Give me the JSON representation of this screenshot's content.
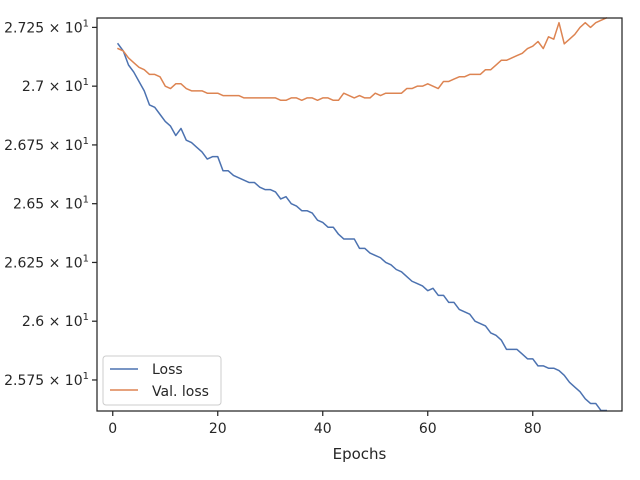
{
  "chart_data": {
    "type": "line",
    "title": "",
    "xlabel": "Epochs",
    "ylabel": "",
    "xlim": [
      -3,
      97
    ],
    "ylim": [
      25.618,
      27.29
    ],
    "x_ticks": [
      0,
      20,
      40,
      60,
      80
    ],
    "y_ticks": [
      {
        "value": 25.75,
        "mantissa": "2.575",
        "exp": "1"
      },
      {
        "value": 26.0,
        "mantissa": "2.6",
        "exp": "1"
      },
      {
        "value": 26.25,
        "mantissa": "2.625",
        "exp": "1"
      },
      {
        "value": 26.5,
        "mantissa": "2.65",
        "exp": "1"
      },
      {
        "value": 26.75,
        "mantissa": "2.675",
        "exp": "1"
      },
      {
        "value": 27.0,
        "mantissa": "2.7",
        "exp": "1"
      },
      {
        "value": 27.25,
        "mantissa": "2.725",
        "exp": "1"
      }
    ],
    "y_tick_times": "×",
    "grid": false,
    "legend_position": "lower-left",
    "series": [
      {
        "name": "Loss",
        "color": "#4c72b0",
        "x": [
          1,
          2,
          3,
          4,
          5,
          6,
          7,
          8,
          9,
          10,
          11,
          12,
          13,
          14,
          15,
          16,
          17,
          18,
          19,
          20,
          21,
          22,
          23,
          24,
          25,
          26,
          27,
          28,
          29,
          30,
          31,
          32,
          33,
          34,
          35,
          36,
          37,
          38,
          39,
          40,
          41,
          42,
          43,
          44,
          45,
          46,
          47,
          48,
          49,
          50,
          51,
          52,
          53,
          54,
          55,
          56,
          57,
          58,
          59,
          60,
          61,
          62,
          63,
          64,
          65,
          66,
          67,
          68,
          69,
          70,
          71,
          72,
          73,
          74,
          75,
          76,
          77,
          78,
          79,
          80,
          81,
          82,
          83,
          84,
          85,
          86,
          87,
          88,
          89,
          90,
          91,
          92,
          93,
          94
        ],
        "y": [
          27.18,
          27.15,
          27.09,
          27.06,
          27.02,
          26.98,
          26.92,
          26.91,
          26.88,
          26.85,
          26.83,
          26.79,
          26.82,
          26.77,
          26.76,
          26.74,
          26.72,
          26.69,
          26.7,
          26.7,
          26.64,
          26.64,
          26.62,
          26.61,
          26.6,
          26.59,
          26.59,
          26.57,
          26.56,
          26.56,
          26.55,
          26.52,
          26.53,
          26.5,
          26.49,
          26.47,
          26.47,
          26.46,
          26.43,
          26.42,
          26.4,
          26.4,
          26.37,
          26.35,
          26.35,
          26.35,
          26.31,
          26.31,
          26.29,
          26.28,
          26.27,
          26.25,
          26.24,
          26.22,
          26.21,
          26.19,
          26.17,
          26.16,
          26.15,
          26.13,
          26.14,
          26.11,
          26.11,
          26.08,
          26.08,
          26.05,
          26.04,
          26.03,
          26.0,
          25.99,
          25.98,
          25.95,
          25.94,
          25.92,
          25.88,
          25.88,
          25.88,
          25.86,
          25.84,
          25.84,
          25.81,
          25.81,
          25.8,
          25.8,
          25.79,
          25.77,
          25.74,
          25.72,
          25.7,
          25.67,
          25.65,
          25.65,
          25.62,
          25.62
        ]
      },
      {
        "name": "Val. loss",
        "color": "#dd8452",
        "x": [
          1,
          2,
          3,
          4,
          5,
          6,
          7,
          8,
          9,
          10,
          11,
          12,
          13,
          14,
          15,
          16,
          17,
          18,
          19,
          20,
          21,
          22,
          23,
          24,
          25,
          26,
          27,
          28,
          29,
          30,
          31,
          32,
          33,
          34,
          35,
          36,
          37,
          38,
          39,
          40,
          41,
          42,
          43,
          44,
          45,
          46,
          47,
          48,
          49,
          50,
          51,
          52,
          53,
          54,
          55,
          56,
          57,
          58,
          59,
          60,
          61,
          62,
          63,
          64,
          65,
          66,
          67,
          68,
          69,
          70,
          71,
          72,
          73,
          74,
          75,
          76,
          77,
          78,
          79,
          80,
          81,
          82,
          83,
          84,
          85,
          86,
          87,
          88,
          89,
          90,
          91,
          92,
          93,
          94
        ],
        "y": [
          27.16,
          27.15,
          27.12,
          27.1,
          27.08,
          27.07,
          27.05,
          27.05,
          27.04,
          27.0,
          26.99,
          27.01,
          27.01,
          26.99,
          26.98,
          26.98,
          26.98,
          26.97,
          26.97,
          26.97,
          26.96,
          26.96,
          26.96,
          26.96,
          26.95,
          26.95,
          26.95,
          26.95,
          26.95,
          26.95,
          26.95,
          26.94,
          26.94,
          26.95,
          26.95,
          26.94,
          26.95,
          26.95,
          26.94,
          26.95,
          26.95,
          26.94,
          26.94,
          26.97,
          26.96,
          26.95,
          26.96,
          26.95,
          26.95,
          26.97,
          26.96,
          26.97,
          26.97,
          26.97,
          26.97,
          26.99,
          26.99,
          27.0,
          27.0,
          27.01,
          27.0,
          26.99,
          27.02,
          27.02,
          27.03,
          27.04,
          27.04,
          27.05,
          27.05,
          27.05,
          27.07,
          27.07,
          27.09,
          27.11,
          27.11,
          27.12,
          27.13,
          27.14,
          27.16,
          27.17,
          27.19,
          27.16,
          27.21,
          27.2,
          27.27,
          27.18,
          27.2,
          27.22,
          27.25,
          27.27,
          27.25,
          27.27,
          27.28,
          27.29
        ]
      }
    ]
  }
}
